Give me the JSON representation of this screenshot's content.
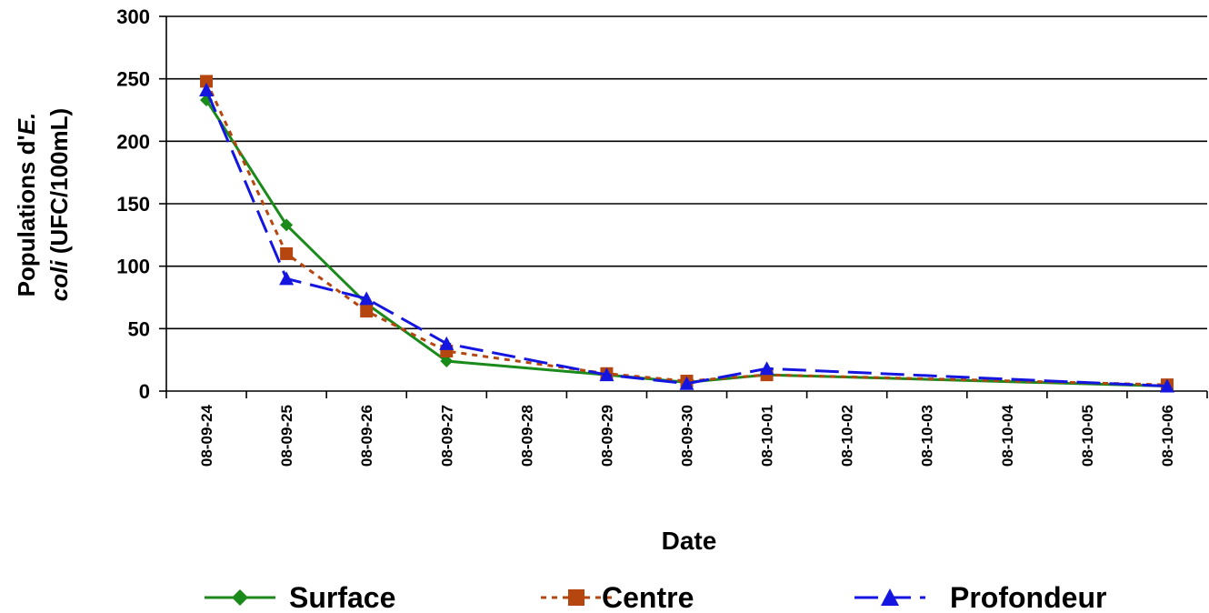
{
  "chart_data": {
    "type": "line",
    "xlabel": "Date",
    "ylabel_line1": "Populations d'",
    "ylabel_line1_italic": "E.",
    "ylabel_line2_italic": "coli",
    "ylabel_line2": " (UFC/100mL)",
    "ylim": [
      0,
      300
    ],
    "yticks": [
      0,
      50,
      100,
      150,
      200,
      250,
      300
    ],
    "grid": true,
    "legend_position": "bottom",
    "categories": [
      "08-09-24",
      "08-09-25",
      "08-09-26",
      "08-09-27",
      "08-09-28",
      "08-09-29",
      "08-09-30",
      "08-10-01",
      "08-10-02",
      "08-10-03",
      "08-10-04",
      "08-10-05",
      "08-10-06"
    ],
    "series": [
      {
        "name": "Surface",
        "color": "#1a8a1a",
        "dash": "solid",
        "marker": "diamond",
        "points": [
          {
            "x": "08-09-24",
            "y": 233
          },
          {
            "x": "08-09-25",
            "y": 133
          },
          {
            "x": "08-09-26",
            "y": 70
          },
          {
            "x": "08-09-27",
            "y": 24
          },
          {
            "x": "08-09-29",
            "y": 13
          },
          {
            "x": "08-09-30",
            "y": 7
          },
          {
            "x": "08-10-01",
            "y": 13
          },
          {
            "x": "08-10-06",
            "y": 4
          }
        ]
      },
      {
        "name": "Centre",
        "color": "#b5460f",
        "dash": "dotted",
        "marker": "square",
        "points": [
          {
            "x": "08-09-24",
            "y": 248
          },
          {
            "x": "08-09-25",
            "y": 110
          },
          {
            "x": "08-09-26",
            "y": 64
          },
          {
            "x": "08-09-27",
            "y": 32
          },
          {
            "x": "08-09-29",
            "y": 14
          },
          {
            "x": "08-09-30",
            "y": 8
          },
          {
            "x": "08-10-01",
            "y": 13
          },
          {
            "x": "08-10-06",
            "y": 5
          }
        ]
      },
      {
        "name": "Profondeur",
        "color": "#1515e0",
        "dash": "dashed",
        "marker": "triangle",
        "points": [
          {
            "x": "08-09-24",
            "y": 241
          },
          {
            "x": "08-09-25",
            "y": 90
          },
          {
            "x": "08-09-26",
            "y": 74
          },
          {
            "x": "08-09-27",
            "y": 38
          },
          {
            "x": "08-09-29",
            "y": 13
          },
          {
            "x": "08-09-30",
            "y": 6
          },
          {
            "x": "08-10-01",
            "y": 18
          },
          {
            "x": "08-10-06",
            "y": 4
          }
        ]
      }
    ]
  }
}
